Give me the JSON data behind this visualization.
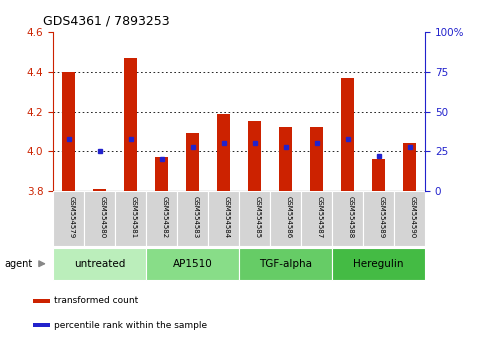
{
  "title": "GDS4361 / 7893253",
  "samples": [
    "GSM554579",
    "GSM554580",
    "GSM554581",
    "GSM554582",
    "GSM554583",
    "GSM554584",
    "GSM554585",
    "GSM554586",
    "GSM554587",
    "GSM554588",
    "GSM554589",
    "GSM554590"
  ],
  "red_values": [
    4.4,
    3.81,
    4.47,
    3.97,
    4.09,
    4.19,
    4.15,
    4.12,
    4.12,
    4.37,
    3.96,
    4.04
  ],
  "blue_values": [
    33,
    25,
    33,
    20,
    28,
    30,
    30,
    28,
    30,
    33,
    22,
    28
  ],
  "y_min": 3.8,
  "y_max": 4.6,
  "y_ticks": [
    3.8,
    4.0,
    4.2,
    4.4,
    4.6
  ],
  "y2_ticks": [
    0,
    25,
    50,
    75,
    100
  ],
  "groups": [
    {
      "label": "untreated",
      "start": 0,
      "end": 3,
      "color": "#bbeebb"
    },
    {
      "label": "AP1510",
      "start": 3,
      "end": 6,
      "color": "#88dd88"
    },
    {
      "label": "TGF-alpha",
      "start": 6,
      "end": 9,
      "color": "#66cc66"
    },
    {
      "label": "Heregulin",
      "start": 9,
      "end": 12,
      "color": "#44bb44"
    }
  ],
  "bar_color": "#cc2200",
  "dot_color": "#2222cc",
  "grid_color": "#000000",
  "bg_color": "#ffffff",
  "tick_label_color_left": "#cc2200",
  "tick_label_color_right": "#2222cc",
  "bar_bottom": 3.8,
  "agent_label": "agent",
  "legend_items": [
    {
      "color": "#cc2200",
      "label": "transformed count"
    },
    {
      "color": "#2222cc",
      "label": "percentile rank within the sample"
    }
  ]
}
